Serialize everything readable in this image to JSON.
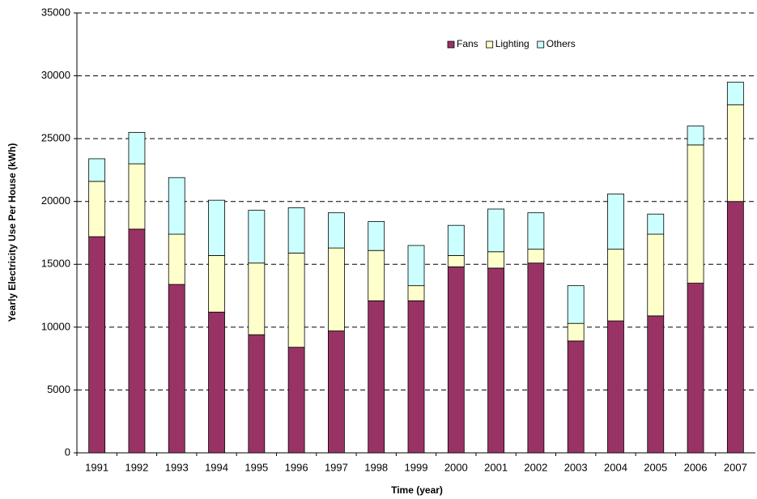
{
  "chart_data": {
    "type": "stacked_bar",
    "y_label": "Yearly Electricity Use Per House (kWh)",
    "x_label": "Time (year)",
    "categories": [
      "1991",
      "1992",
      "1993",
      "1994",
      "1995",
      "1996",
      "1997",
      "1998",
      "1999",
      "2000",
      "2001",
      "2002",
      "2003",
      "2004",
      "2005",
      "2006",
      "2007"
    ],
    "series": [
      {
        "name": "Fans",
        "color": "#993366",
        "values": [
          17200,
          17800,
          13400,
          11200,
          9400,
          8400,
          9700,
          12100,
          12100,
          14800,
          14700,
          15100,
          8900,
          10500,
          10900,
          13500,
          20000
        ]
      },
      {
        "name": "Lighting",
        "color": "#ffffcc",
        "values": [
          4400,
          5200,
          4000,
          4500,
          5700,
          7500,
          6600,
          4000,
          1200,
          900,
          1300,
          1100,
          1400,
          5700,
          6500,
          11000,
          7700
        ]
      },
      {
        "name": "Others",
        "color": "#ccffff",
        "values": [
          1800,
          2500,
          4500,
          4400,
          4200,
          3600,
          2800,
          2300,
          3200,
          2400,
          3400,
          2900,
          3000,
          4400,
          1600,
          1500,
          1800
        ]
      }
    ],
    "ylim": [
      0,
      35000
    ],
    "yticks": [
      0,
      5000,
      10000,
      15000,
      20000,
      25000,
      30000,
      35000
    ],
    "grid": true,
    "legend": "top"
  }
}
